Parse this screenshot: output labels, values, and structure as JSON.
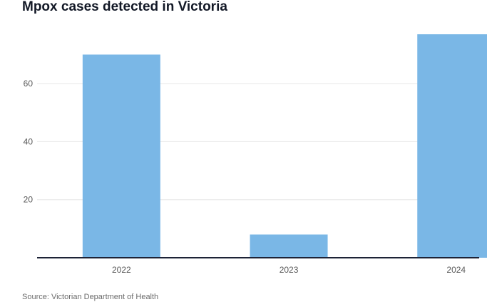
{
  "title": "Mpox cases detected in Victoria",
  "source": "Source: Victorian Department of Health",
  "chart_data": {
    "type": "bar",
    "title": "Mpox cases detected in Victoria",
    "categories": [
      "2022",
      "2023",
      "2024"
    ],
    "values": [
      70,
      8,
      77
    ],
    "xlabel": "",
    "ylabel": "",
    "ylim": [
      0,
      80
    ],
    "yticks": [
      20,
      40,
      60
    ],
    "grid": true,
    "legend": "none",
    "bar_color": "#7ab7e6",
    "axis_color": "#1d2236",
    "grid_color": "#e6e6e6"
  }
}
